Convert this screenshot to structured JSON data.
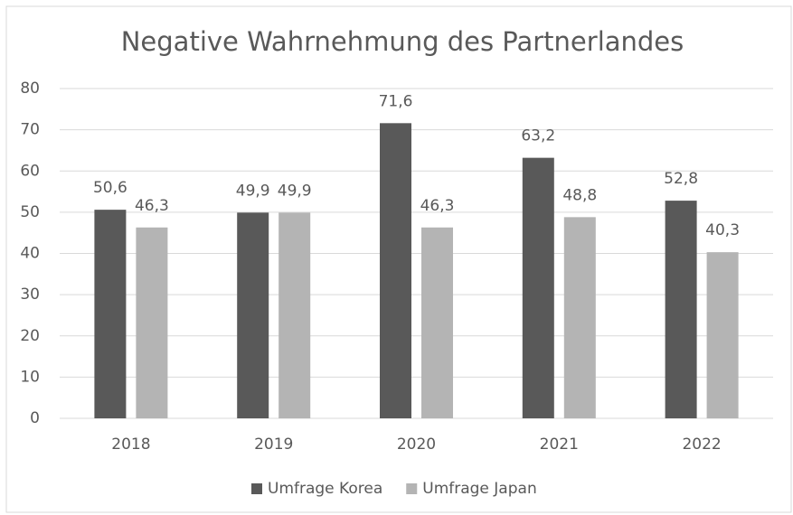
{
  "chart_data": {
    "type": "bar",
    "title": "Negative Wahrnehmung des Partnerlandes",
    "categories": [
      "2018",
      "2019",
      "2020",
      "2021",
      "2022"
    ],
    "series": [
      {
        "name": "Umfrage Korea",
        "color": "#595959",
        "values": [
          50.6,
          49.9,
          71.6,
          63.2,
          52.8
        ],
        "value_labels": [
          "50,6",
          "49,9",
          "71,6",
          "63,2",
          "52,8"
        ]
      },
      {
        "name": "Umfrage Japan",
        "color": "#b4b4b4",
        "values": [
          46.3,
          49.9,
          46.3,
          48.8,
          40.3
        ],
        "value_labels": [
          "46,3",
          "49,9",
          "46,3",
          "48,8",
          "40,3"
        ]
      }
    ],
    "ylim": [
      0,
      80
    ],
    "yticks": [
      0,
      10,
      20,
      30,
      40,
      50,
      60,
      70,
      80
    ],
    "grid": true,
    "legend": "bottom"
  }
}
